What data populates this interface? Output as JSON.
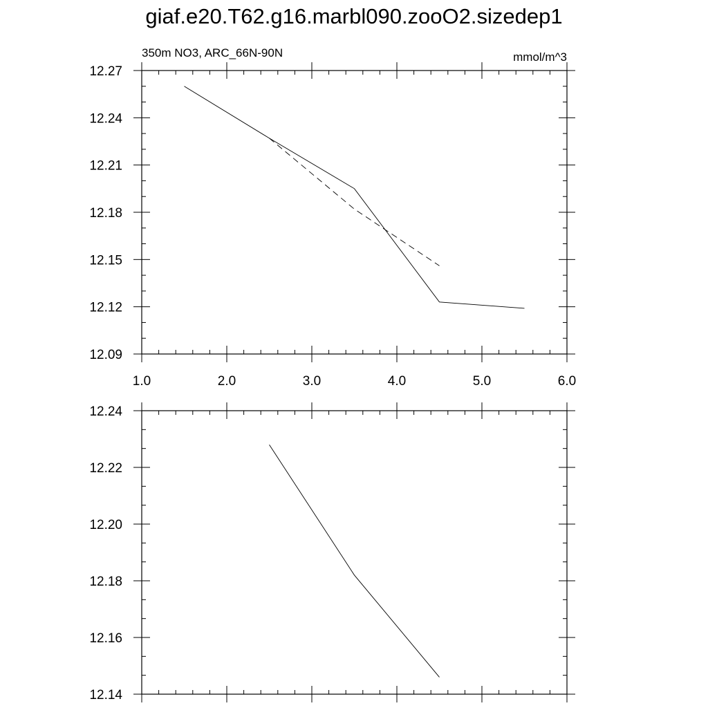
{
  "page": {
    "title": "giaf.e20.T62.g16.marbl090.zooO2.sizedep1"
  },
  "chart_data": [
    {
      "type": "line",
      "left_label": "350m NO3, ARC_66N-90N",
      "right_label": "mmol/m^3",
      "xlim": [
        1.0,
        6.0
      ],
      "ylim": [
        12.09,
        12.27
      ],
      "x_ticks": [
        "1.0",
        "2.0",
        "3.0",
        "4.0",
        "5.0",
        "6.0"
      ],
      "y_ticks": [
        "12.09",
        "12.12",
        "12.15",
        "12.18",
        "12.21",
        "12.24",
        "12.27"
      ],
      "series": [
        {
          "style": "solid",
          "x": [
            1.5,
            2.5,
            3.5,
            4.5,
            5.5
          ],
          "y": [
            12.26,
            12.227,
            12.195,
            12.123,
            12.119
          ]
        },
        {
          "style": "dashed",
          "x": [
            2.5,
            3.5,
            4.5
          ],
          "y": [
            12.227,
            12.182,
            12.146
          ]
        }
      ]
    },
    {
      "type": "line",
      "xlim": [
        1.0,
        6.0
      ],
      "ylim": [
        12.14,
        12.24
      ],
      "y_ticks": [
        "12.14",
        "12.16",
        "12.18",
        "12.20",
        "12.22",
        "12.24"
      ],
      "series": [
        {
          "style": "solid",
          "x": [
            2.5,
            3.5,
            4.5
          ],
          "y": [
            12.228,
            12.182,
            12.146
          ]
        }
      ]
    }
  ]
}
